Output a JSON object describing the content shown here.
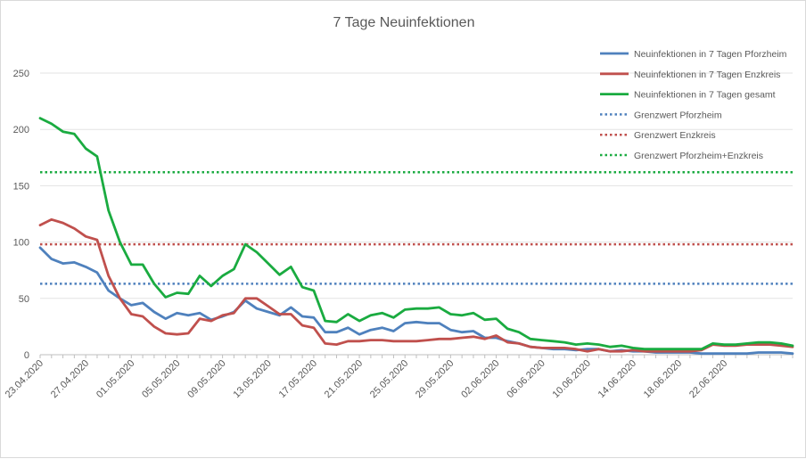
{
  "chart_data": {
    "type": "line",
    "title": "7 Tage Neuinfektionen",
    "xlabel": "",
    "ylabel": "",
    "ylim": [
      0,
      250
    ],
    "yticks": [
      0,
      50,
      100,
      150,
      200,
      250
    ],
    "grid": "horizontal",
    "legend_position": "right",
    "x_start": "23.04.2020",
    "x_tick_labels": [
      "23.04.2020",
      "27.04.2020",
      "01.05.2020",
      "05.05.2020",
      "09.05.2020",
      "13.05.2020",
      "17.05.2020",
      "21.05.2020",
      "25.05.2020",
      "29.05.2020",
      "02.06.2020",
      "06.06.2020",
      "10.06.2020",
      "14.06.2020",
      "18.06.2020",
      "22.06.2020"
    ],
    "series": [
      {
        "name": "Neuinfektionen in 7 Tagen Pforzheim",
        "color": "#4f81bd",
        "style": "solid",
        "values": [
          95,
          85,
          81,
          82,
          78,
          73,
          57,
          50,
          44,
          46,
          38,
          32,
          37,
          35,
          37,
          31,
          34,
          38,
          48,
          41,
          38,
          35,
          42,
          34,
          33,
          20,
          20,
          24,
          18,
          22,
          24,
          21,
          28,
          29,
          28,
          28,
          22,
          20,
          21,
          15,
          15,
          12,
          10,
          7,
          6,
          5,
          5,
          4,
          5,
          5,
          3,
          4,
          3,
          3,
          2,
          2,
          2,
          2,
          1,
          1,
          1,
          1,
          1,
          2,
          2,
          2,
          1
        ]
      },
      {
        "name": "Neuinfektionen in 7 Tagen Enzkreis",
        "color": "#c0504d",
        "style": "solid",
        "values": [
          115,
          120,
          117,
          112,
          105,
          102,
          70,
          50,
          36,
          34,
          25,
          19,
          18,
          19,
          32,
          30,
          35,
          37,
          50,
          50,
          43,
          36,
          36,
          26,
          24,
          10,
          9,
          12,
          12,
          13,
          13,
          12,
          12,
          12,
          13,
          14,
          14,
          15,
          16,
          14,
          17,
          11,
          10,
          7,
          6,
          6,
          6,
          5,
          3,
          5,
          3,
          3,
          4,
          3,
          3,
          3,
          3,
          3,
          4,
          9,
          8,
          8,
          9,
          9,
          9,
          8,
          7
        ]
      },
      {
        "name": "Neuinfektionen in 7 Tagen gesamt",
        "color": "#1aab40",
        "style": "solid",
        "values": [
          210,
          205,
          198,
          196,
          183,
          176,
          128,
          100,
          80,
          80,
          63,
          51,
          55,
          54,
          70,
          61,
          70,
          76,
          98,
          91,
          81,
          71,
          78,
          60,
          57,
          30,
          29,
          36,
          30,
          35,
          37,
          33,
          40,
          41,
          41,
          42,
          36,
          35,
          37,
          31,
          32,
          23,
          20,
          14,
          13,
          12,
          11,
          9,
          10,
          9,
          7,
          8,
          6,
          5,
          5,
          5,
          5,
          5,
          5,
          10,
          9,
          9,
          10,
          11,
          11,
          10,
          8
        ]
      },
      {
        "name": "Grenzwert Pforzheim",
        "color": "#4f81bd",
        "style": "dotted",
        "constant": 63
      },
      {
        "name": "Grenzwert Enzkreis",
        "color": "#c0504d",
        "style": "dotted",
        "constant": 98
      },
      {
        "name": "Grenzwert Pforzheim+Enzkreis",
        "color": "#1aab40",
        "style": "dotted",
        "constant": 162
      }
    ]
  }
}
